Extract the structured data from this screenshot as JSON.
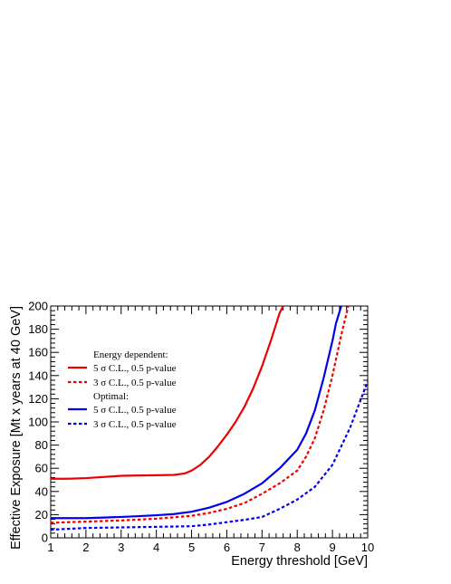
{
  "chart_data": {
    "type": "line",
    "title": "",
    "xlabel": "Energy threshold [GeV]",
    "ylabel": "Effective Exposure [Mt x years at 40 GeV]",
    "xlim": [
      1,
      10
    ],
    "ylim": [
      0,
      200
    ],
    "x_ticks": [
      1,
      2,
      3,
      4,
      5,
      6,
      7,
      8,
      9,
      10
    ],
    "y_ticks": [
      0,
      20,
      40,
      60,
      80,
      100,
      120,
      140,
      160,
      180,
      200
    ],
    "grid": false,
    "legend_position": "upper-left",
    "legend_groups": [
      {
        "heading": "Energy dependent:",
        "series": [
          0,
          1
        ]
      },
      {
        "heading": "Optimal:",
        "series": [
          2,
          3
        ]
      }
    ],
    "series": [
      {
        "name": "5 σ C.L., 0.5 p-value",
        "color": "#ee0000",
        "style": "solid",
        "points": [
          [
            1,
            51
          ],
          [
            1.5,
            51
          ],
          [
            2,
            51.5
          ],
          [
            2.5,
            52.5
          ],
          [
            3,
            53.5
          ],
          [
            3.5,
            53.8
          ],
          [
            4,
            54
          ],
          [
            4.5,
            54.3
          ],
          [
            4.8,
            55.5
          ],
          [
            5,
            58
          ],
          [
            5.25,
            63
          ],
          [
            5.5,
            70
          ],
          [
            5.75,
            79
          ],
          [
            6,
            89
          ],
          [
            6.25,
            100
          ],
          [
            6.5,
            113
          ],
          [
            6.75,
            129
          ],
          [
            7,
            148
          ],
          [
            7.25,
            170
          ],
          [
            7.5,
            194
          ],
          [
            7.6,
            200
          ]
        ]
      },
      {
        "name": "3 σ C.L., 0.5 p-value",
        "color": "#ee0000",
        "style": "dashed",
        "points": [
          [
            1,
            13
          ],
          [
            2,
            14
          ],
          [
            3,
            15
          ],
          [
            4,
            16.5
          ],
          [
            5,
            19
          ],
          [
            5.5,
            21.5
          ],
          [
            6,
            25
          ],
          [
            6.5,
            30
          ],
          [
            7,
            38
          ],
          [
            7.5,
            47
          ],
          [
            8,
            58
          ],
          [
            8.25,
            70
          ],
          [
            8.5,
            86
          ],
          [
            8.75,
            110
          ],
          [
            9,
            140
          ],
          [
            9.25,
            175
          ],
          [
            9.45,
            200
          ]
        ]
      },
      {
        "name": "5 σ C.L., 0.5 p-value",
        "color": "#0000ee",
        "style": "solid",
        "points": [
          [
            1,
            17
          ],
          [
            1.5,
            17
          ],
          [
            2,
            17
          ],
          [
            2.5,
            17.5
          ],
          [
            3,
            18
          ],
          [
            3.5,
            18.7
          ],
          [
            4,
            19.5
          ],
          [
            4.5,
            20.5
          ],
          [
            5,
            22.5
          ],
          [
            5.5,
            26
          ],
          [
            6,
            31
          ],
          [
            6.5,
            38
          ],
          [
            7,
            47
          ],
          [
            7.5,
            60
          ],
          [
            8,
            76
          ],
          [
            8.25,
            90
          ],
          [
            8.5,
            110
          ],
          [
            8.75,
            138
          ],
          [
            9,
            170
          ],
          [
            9.1,
            185
          ],
          [
            9.25,
            200
          ]
        ]
      },
      {
        "name": "3 σ C.L., 0.5 p-value",
        "color": "#0000ee",
        "style": "dashed",
        "points": [
          [
            1,
            7
          ],
          [
            2,
            8.5
          ],
          [
            3,
            9
          ],
          [
            4,
            9.5
          ],
          [
            5,
            10
          ],
          [
            5.5,
            11.5
          ],
          [
            6,
            13.5
          ],
          [
            6.5,
            15.5
          ],
          [
            7,
            18
          ],
          [
            7.5,
            25
          ],
          [
            8,
            33
          ],
          [
            8.5,
            44
          ],
          [
            9,
            63
          ],
          [
            9.5,
            95
          ],
          [
            10,
            135
          ]
        ]
      }
    ]
  }
}
